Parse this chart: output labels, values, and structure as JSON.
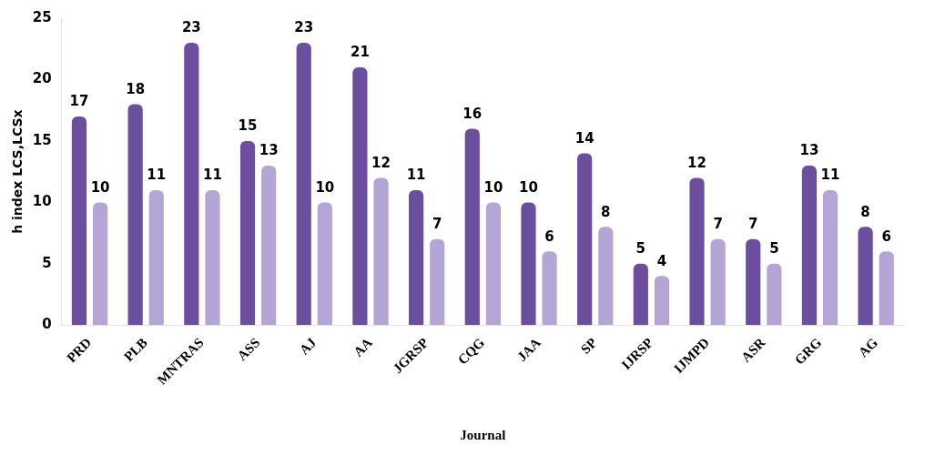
{
  "chart_data": {
    "type": "bar",
    "xlabel": "Journal",
    "ylabel": "h index LCS,LCSx",
    "categories": [
      "PRD",
      "PLB",
      "MNTRAS",
      "ASS",
      "AJ",
      "AA",
      "JGRSP",
      "CQG",
      "JAA",
      "SP",
      "IJRSP",
      "IJMPD",
      "ASR",
      "GRG",
      "AG"
    ],
    "series": [
      {
        "color": "#6b4f9e",
        "values": [
          17,
          18,
          23,
          15,
          23,
          21,
          11,
          16,
          10,
          14,
          5,
          12,
          7,
          13,
          8
        ]
      },
      {
        "color": "#b4a5d6",
        "values": [
          10,
          11,
          11,
          13,
          10,
          12,
          7,
          10,
          6,
          8,
          4,
          7,
          5,
          11,
          6
        ]
      }
    ],
    "ylim": [
      0,
      25
    ],
    "yticks": [
      0,
      5,
      10,
      15,
      20,
      25
    ],
    "grid": false,
    "legend": false,
    "data_labels": true
  }
}
